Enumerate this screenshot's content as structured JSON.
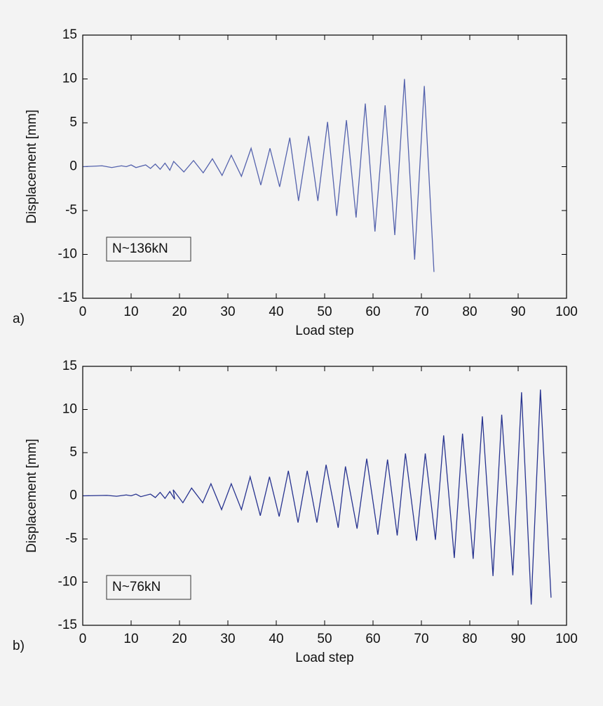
{
  "chart_data": [
    {
      "type": "line",
      "panel_label": "a)",
      "annotation": "N~136kN",
      "xlabel": "Load step",
      "ylabel": "Displacement [mm]",
      "xlim": [
        0,
        100
      ],
      "xticks": [
        0,
        10,
        20,
        30,
        40,
        50,
        60,
        70,
        80,
        90,
        100
      ],
      "ylim": [
        -15,
        15
      ],
      "yticks": [
        -15,
        -10,
        -5,
        0,
        5,
        10,
        15
      ],
      "series": [
        {
          "color": "#5563ad",
          "x": [
            0,
            4,
            6,
            8,
            9,
            10,
            11,
            13,
            14,
            15,
            16,
            17,
            18,
            18.8,
            20.9,
            22.9,
            24.9,
            26.8,
            28.8,
            30.7,
            32.8,
            34.8,
            36.8,
            38.7,
            40.7,
            42.8,
            44.6,
            46.7,
            48.6,
            50.6,
            52.5,
            54.5,
            56.5,
            58.4,
            60.4,
            62.5,
            64.5,
            66.5,
            68.6,
            70.6,
            72.6
          ],
          "values": [
            0,
            0.1,
            -0.1,
            0.1,
            0,
            0.2,
            -0.1,
            0.2,
            -0.2,
            0.3,
            -0.3,
            0.4,
            -0.4,
            0.6,
            -0.6,
            0.7,
            -0.7,
            0.9,
            -1.0,
            1.3,
            -1.1,
            2.1,
            -2.1,
            2.1,
            -2.3,
            3.3,
            -3.9,
            3.5,
            -3.9,
            5.1,
            -5.6,
            5.3,
            -5.8,
            7.2,
            -7.4,
            7.0,
            -7.8,
            10.0,
            -10.6,
            9.2,
            -12.0
          ]
        }
      ]
    },
    {
      "type": "line",
      "panel_label": "b)",
      "annotation": "N~76kN",
      "xlabel": "Load step",
      "ylabel": "Displacement [mm]",
      "xlim": [
        0,
        100
      ],
      "xticks": [
        0,
        10,
        20,
        30,
        40,
        50,
        60,
        70,
        80,
        90,
        100
      ],
      "ylim": [
        -15,
        15
      ],
      "yticks": [
        -15,
        -10,
        -5,
        0,
        5,
        10,
        15
      ],
      "series": [
        {
          "color": "#27338f",
          "x": [
            0,
            5,
            7,
            9,
            10,
            11,
            12,
            14,
            15,
            16,
            17,
            18,
            19,
            18.7,
            20.7,
            22.5,
            24.8,
            26.5,
            28.7,
            30.7,
            32.8,
            34.6,
            36.7,
            38.6,
            40.6,
            42.5,
            44.5,
            46.4,
            48.4,
            50.3,
            52.8,
            54.3,
            56.7,
            58.7,
            61,
            63,
            65,
            66.7,
            69,
            70.8,
            72.9,
            74.6,
            76.8,
            78.5,
            80.7,
            82.6,
            84.8,
            86.6,
            88.9,
            90.7,
            92.7,
            94.6,
            96.8
          ],
          "values": [
            0,
            0.05,
            -0.05,
            0.1,
            0,
            0.2,
            -0.1,
            0.2,
            -0.2,
            0.4,
            -0.3,
            0.5,
            -0.4,
            0.7,
            -0.8,
            0.9,
            -0.8,
            1.4,
            -1.6,
            1.4,
            -1.6,
            2.2,
            -2.3,
            2.2,
            -2.4,
            2.9,
            -3.1,
            2.9,
            -3.1,
            3.6,
            -3.7,
            3.4,
            -3.8,
            4.3,
            -4.5,
            4.2,
            -4.6,
            4.9,
            -5.2,
            4.9,
            -5.1,
            7.0,
            -7.2,
            7.2,
            -7.3,
            9.2,
            -9.3,
            9.4,
            -9.2,
            12.0,
            -12.6,
            12.3,
            -11.8
          ]
        }
      ]
    }
  ]
}
